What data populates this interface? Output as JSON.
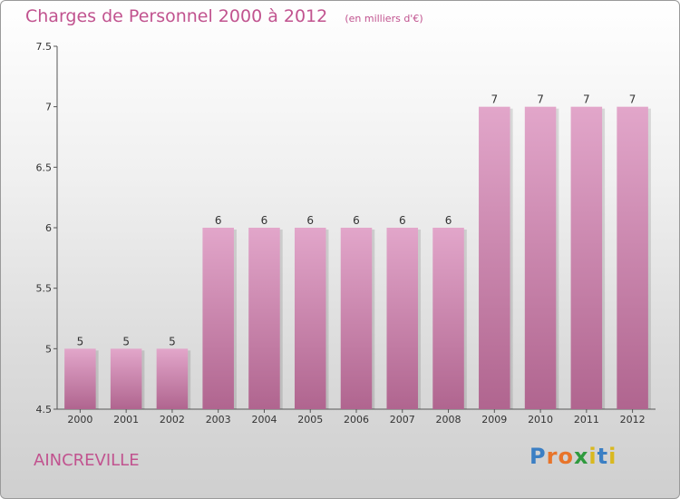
{
  "header": {
    "title": "Charges de Personnel 2000 à 2012",
    "subtitle": "(en milliers d'€)"
  },
  "footer": {
    "commune": "AINCREVILLE",
    "logo_letters": [
      "P",
      "r",
      "o",
      "x",
      "i",
      "t",
      "i"
    ],
    "logo_colors": [
      "#3b7fc4",
      "#e8742a",
      "#e8742a",
      "#2f9a3e",
      "#d9b81f",
      "#3b7fc4",
      "#d9b81f"
    ]
  },
  "chart_data": {
    "type": "bar",
    "categories": [
      "2000",
      "2001",
      "2002",
      "2003",
      "2004",
      "2005",
      "2006",
      "2007",
      "2008",
      "2009",
      "2010",
      "2011",
      "2012"
    ],
    "values": [
      5,
      5,
      5,
      6,
      6,
      6,
      6,
      6,
      6,
      7,
      7,
      7,
      7
    ],
    "data_labels": [
      "5",
      "5",
      "5",
      "6",
      "6",
      "6",
      "6",
      "6",
      "6",
      "7",
      "7",
      "7",
      "7"
    ],
    "yticks": [
      "4.5",
      "5",
      "5.5",
      "6",
      "6.5",
      "7",
      "7.5"
    ],
    "ylim": [
      4.5,
      7.5
    ],
    "grid": false,
    "bar_color_top": "#e2a6ca",
    "bar_color_bottom": "#b0658f",
    "text_color": "#c1538f"
  }
}
